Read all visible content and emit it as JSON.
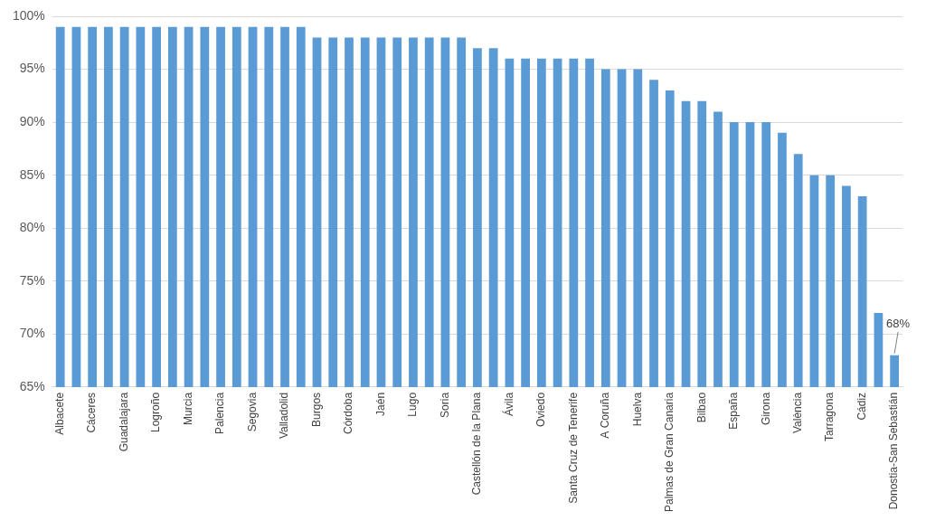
{
  "chart_data": {
    "type": "bar",
    "categories": [
      "Albacete",
      null,
      "Cáceres",
      null,
      "Guadalajara",
      null,
      "Logroño",
      null,
      "Murcia",
      null,
      "Palencia",
      null,
      "Segovia",
      null,
      "Valladolid",
      null,
      "Burgos",
      null,
      "Córdoba",
      null,
      "Jaén",
      null,
      "Lugo",
      null,
      "Soria",
      null,
      "Castellón de la Plana",
      null,
      "Ávila",
      null,
      "Oviedo",
      null,
      "Santa Cruz de Tenerife",
      null,
      "A Coruña",
      null,
      "Huelva",
      null,
      "Palmas de Gran Canaria",
      null,
      "Bilbao",
      null,
      "España",
      null,
      "Girona",
      null,
      "València",
      null,
      "Tarragona",
      null,
      "Cádiz",
      null,
      "Donostia-San Sebastián"
    ],
    "values": [
      99,
      99,
      99,
      99,
      99,
      99,
      99,
      99,
      99,
      99,
      99,
      99,
      99,
      99,
      99,
      99,
      98,
      98,
      98,
      98,
      98,
      98,
      98,
      98,
      98,
      98,
      97,
      97,
      96,
      96,
      96,
      96,
      96,
      96,
      95,
      95,
      95,
      94,
      93,
      92,
      92,
      91,
      90,
      90,
      90,
      89,
      87,
      85,
      85,
      84,
      83,
      72,
      68
    ],
    "color": "#5b9bd5",
    "ylim": [
      65,
      100
    ],
    "yticks": [
      {
        "value": 65,
        "label": "65%"
      },
      {
        "value": 70,
        "label": "70%"
      },
      {
        "value": 75,
        "label": "75%"
      },
      {
        "value": 80,
        "label": "80%"
      },
      {
        "value": 85,
        "label": "85%"
      },
      {
        "value": 90,
        "label": "90%"
      },
      {
        "value": 95,
        "label": "95%"
      },
      {
        "value": 100,
        "label": "100%"
      }
    ],
    "grid": true,
    "annotations": [
      {
        "category": "Donostia-San Sebastián",
        "value": 68,
        "text": "68%"
      }
    ]
  }
}
